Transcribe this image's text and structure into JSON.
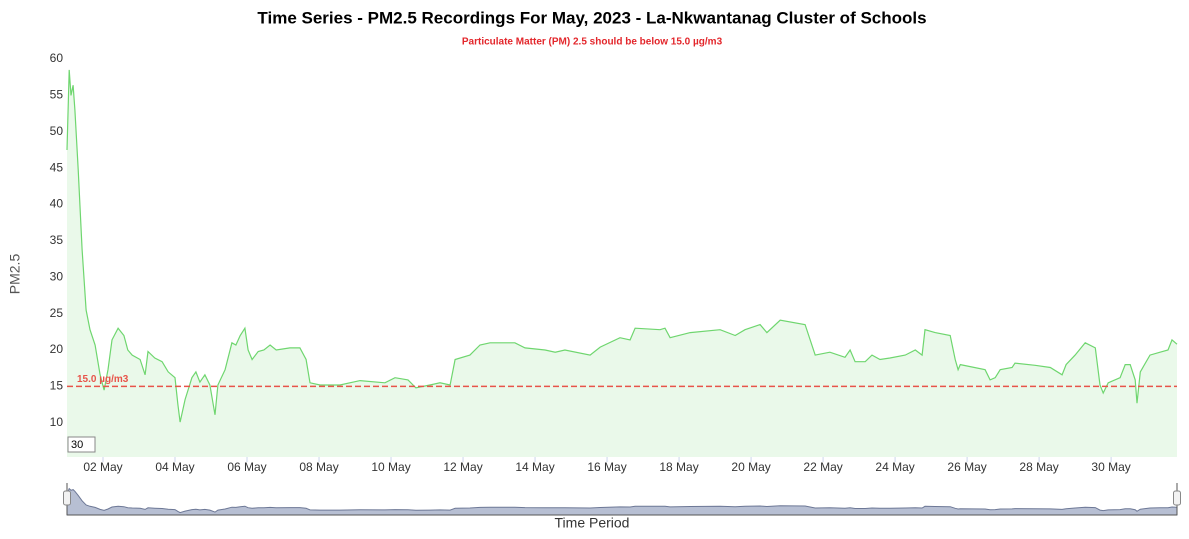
{
  "chart_data": {
    "type": "area",
    "title": "Time Series - PM2.5 Recordings For May, 2023 - La-Nkwantanag Cluster of Schools",
    "subtitle": "Particulate Matter (PM) 2.5 should be below 15.0 µg/m3",
    "y_label": "PM2.5",
    "x_label": "Time Period",
    "window_label": "30",
    "color": "#6fd66f",
    "threshold": {
      "value": 15,
      "label": "15.0 µg/m3",
      "color": "#e8544a"
    },
    "x": [
      1.0,
      1.06,
      1.11,
      1.17,
      1.22,
      1.31,
      1.42,
      1.53,
      1.64,
      1.78,
      1.92,
      2.03,
      2.14,
      2.25,
      2.42,
      2.58,
      2.69,
      2.81,
      3.03,
      3.17,
      3.25,
      3.44,
      3.64,
      3.81,
      4.0,
      4.08,
      4.14,
      4.28,
      4.47,
      4.58,
      4.69,
      4.83,
      4.97,
      5.11,
      5.19,
      5.39,
      5.58,
      5.69,
      5.81,
      5.94,
      6.03,
      6.14,
      6.31,
      6.47,
      6.64,
      6.81,
      7.19,
      7.47,
      7.64,
      7.75,
      8.03,
      8.58,
      9.14,
      9.83,
      10.11,
      10.47,
      10.69,
      11.08,
      11.36,
      11.64,
      11.78,
      12.19,
      12.47,
      12.75,
      13.44,
      13.72,
      14.28,
      14.56,
      14.83,
      15.53,
      15.81,
      16.36,
      16.64,
      16.78,
      17.47,
      17.61,
      17.75,
      18.31,
      19.14,
      19.56,
      19.83,
      20.25,
      20.44,
      20.81,
      21.5,
      21.78,
      22.19,
      22.61,
      22.75,
      22.89,
      23.17,
      23.36,
      23.58,
      23.86,
      24.28,
      24.56,
      24.75,
      24.83,
      25.11,
      25.53,
      25.67,
      25.75,
      25.81,
      26.5,
      26.64,
      26.78,
      26.92,
      27.25,
      27.33,
      27.89,
      28.31,
      28.64,
      28.75,
      29.0,
      29.28,
      29.56,
      29.69,
      29.78,
      29.92,
      30.25,
      30.39,
      30.53,
      30.67,
      30.72,
      30.81,
      31.08,
      31.36,
      31.58,
      31.69,
      31.83
    ],
    "values": [
      47.5,
      58.5,
      55,
      56.4,
      53,
      44.8,
      33.8,
      25.5,
      22.8,
      20.7,
      16.6,
      14.5,
      17.3,
      21.4,
      23,
      22,
      20,
      19.3,
      18.7,
      16.6,
      19.8,
      18.9,
      18.4,
      17,
      16.2,
      12.5,
      10.1,
      13.2,
      16.2,
      17,
      15.6,
      16.6,
      15.2,
      11.1,
      15.2,
      17.3,
      21,
      20.7,
      22,
      23,
      20,
      18.7,
      19.8,
      20,
      20.7,
      20,
      20.3,
      20.3,
      18.7,
      15.5,
      15.2,
      15.2,
      15.8,
      15.5,
      16.2,
      15.9,
      14.8,
      15.2,
      15.5,
      15.2,
      18.7,
      19.3,
      20.7,
      21,
      21,
      20.3,
      20,
      19.7,
      20,
      19.3,
      20.4,
      21.7,
      21.4,
      23,
      22.8,
      23,
      21.7,
      22.4,
      22.8,
      22,
      22.8,
      23.5,
      22.4,
      24.1,
      23.5,
      19.3,
      19.7,
      19,
      20,
      18.4,
      18.4,
      19.3,
      18.7,
      18.9,
      19.3,
      20,
      19.3,
      22.8,
      22.4,
      22,
      18.7,
      17.3,
      18,
      17.3,
      15.9,
      16.2,
      17.3,
      17.6,
      18.2,
      17.9,
      17.6,
      16.6,
      18,
      19.3,
      21,
      20.3,
      15.2,
      14.1,
      15.5,
      16.2,
      18,
      18,
      15.9,
      12.7,
      17,
      19.3,
      19.7,
      20,
      21.4,
      20.8
    ],
    "xlim": [
      1,
      31.83
    ],
    "xticks": [
      {
        "value": 2,
        "label": "02 May"
      },
      {
        "value": 4,
        "label": "04 May"
      },
      {
        "value": 6,
        "label": "06 May"
      },
      {
        "value": 8,
        "label": "08 May"
      },
      {
        "value": 10,
        "label": "10 May"
      },
      {
        "value": 12,
        "label": "12 May"
      },
      {
        "value": 14,
        "label": "14 May"
      },
      {
        "value": 16,
        "label": "16 May"
      },
      {
        "value": 18,
        "label": "18 May"
      },
      {
        "value": 20,
        "label": "20 May"
      },
      {
        "value": 22,
        "label": "22 May"
      },
      {
        "value": 24,
        "label": "24 May"
      },
      {
        "value": 26,
        "label": "26 May"
      },
      {
        "value": 28,
        "label": "28 May"
      },
      {
        "value": 30,
        "label": "30 May"
      }
    ],
    "ylim": [
      5.3,
      63.3
    ],
    "yticks": [
      10,
      15,
      20,
      25,
      30,
      35,
      40,
      45,
      50,
      55,
      60
    ]
  }
}
